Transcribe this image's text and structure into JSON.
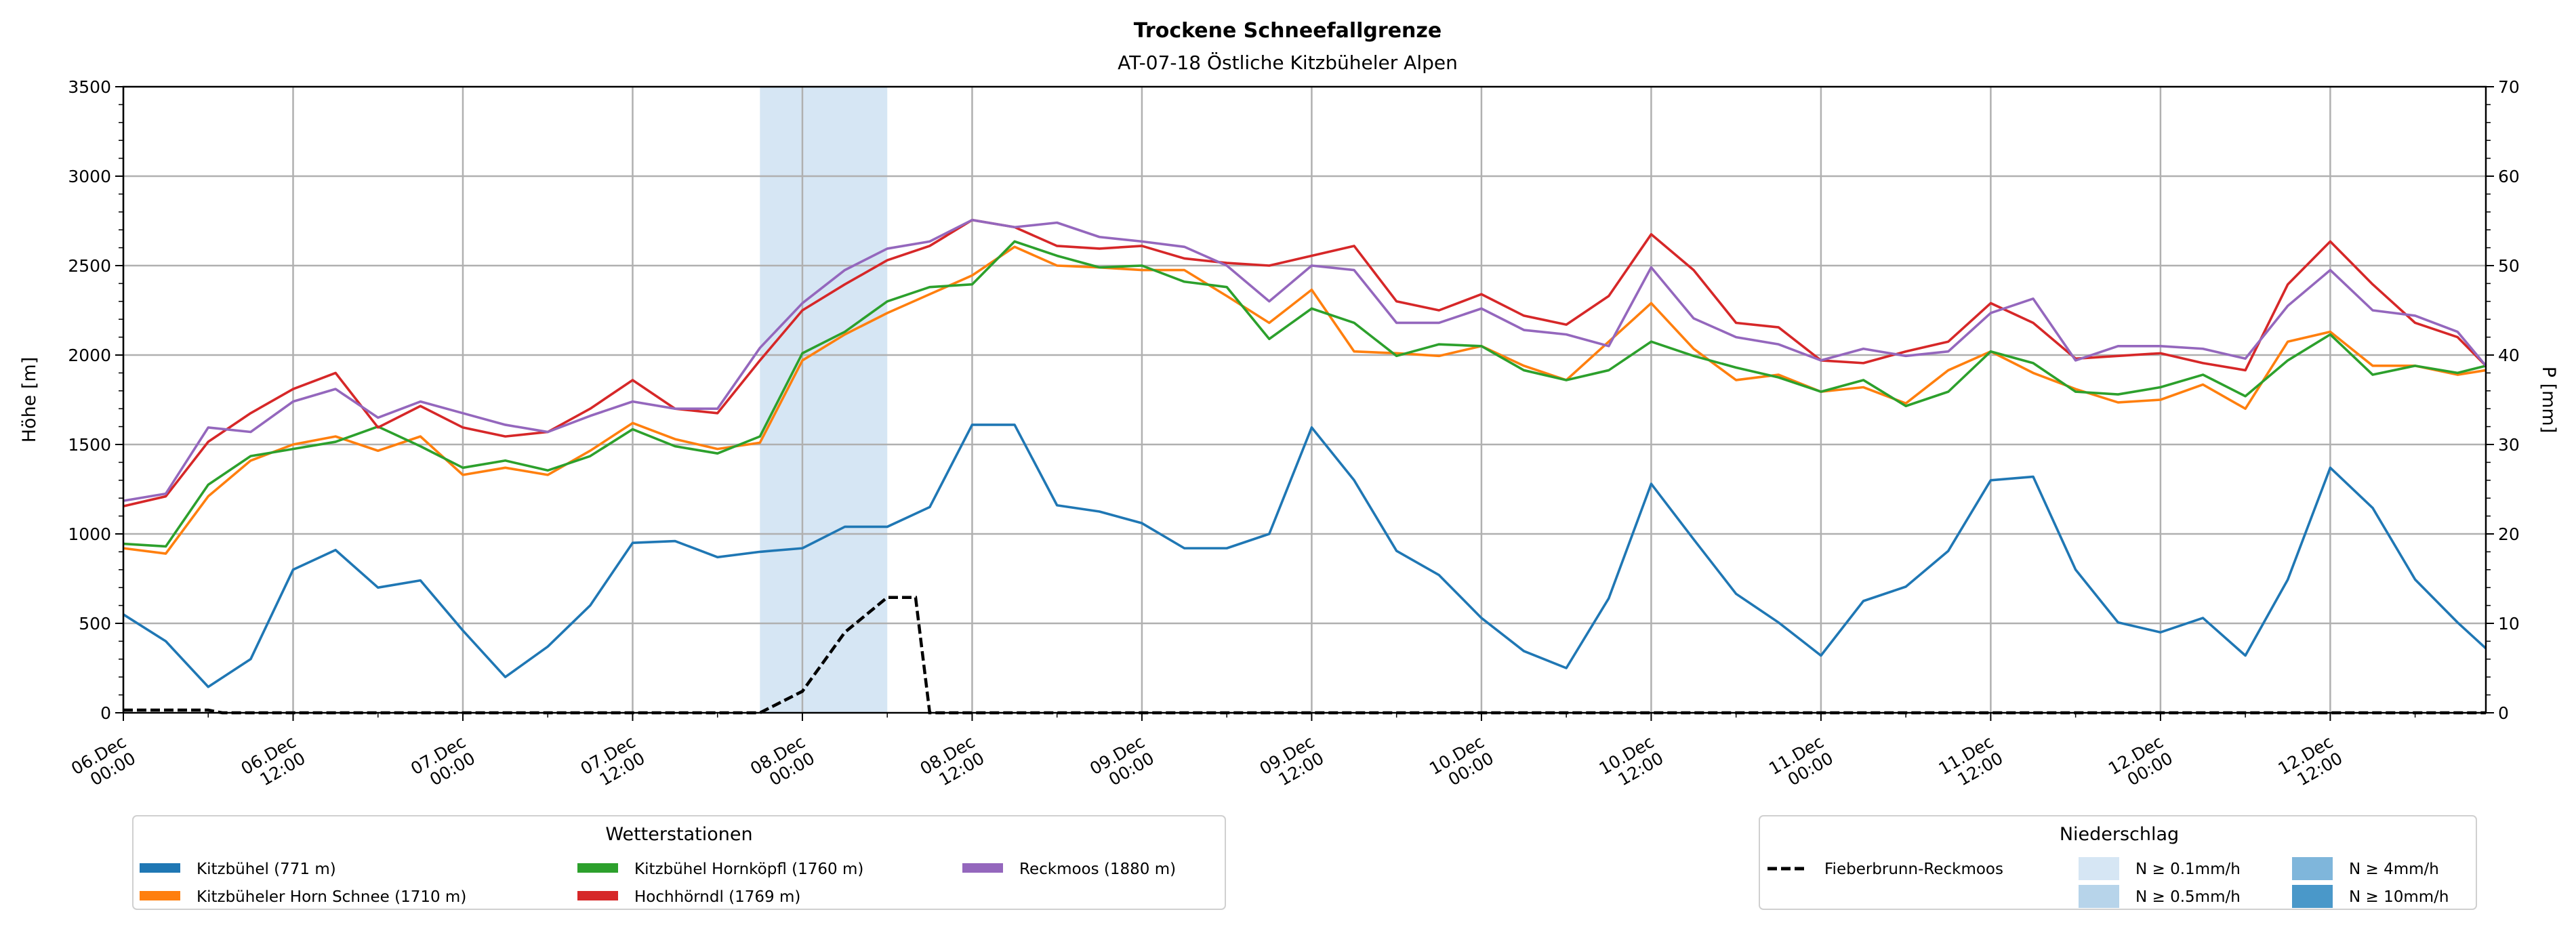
{
  "chart_data": {
    "type": "line",
    "title": "Trockene Schneefallgrenze",
    "subtitle": "AT-07-18 Östliche Kitzbüheler Alpen",
    "ylabel": "Höhe [m]",
    "ylabel_right": "P [mm]",
    "ylim": [
      0,
      3500
    ],
    "ylim_right": [
      0,
      70
    ],
    "xlim_hours": [
      0,
      167
    ],
    "grid": true,
    "yticks": [
      "0",
      "500",
      "1000",
      "1500",
      "2000",
      "2500",
      "3000",
      "3500"
    ],
    "yticks_right": [
      "0",
      "10",
      "20",
      "30",
      "40",
      "50",
      "60",
      "70"
    ],
    "xticks": [
      {
        "hour": 0,
        "day": "06.Dec",
        "time": "00:00"
      },
      {
        "hour": 12,
        "day": "06.Dec",
        "time": "12:00"
      },
      {
        "hour": 24,
        "day": "07.Dec",
        "time": "00:00"
      },
      {
        "hour": 36,
        "day": "07.Dec",
        "time": "12:00"
      },
      {
        "hour": 48,
        "day": "08.Dec",
        "time": "00:00"
      },
      {
        "hour": 60,
        "day": "08.Dec",
        "time": "12:00"
      },
      {
        "hour": 72,
        "day": "09.Dec",
        "time": "00:00"
      },
      {
        "hour": 84,
        "day": "09.Dec",
        "time": "12:00"
      },
      {
        "hour": 96,
        "day": "10.Dec",
        "time": "00:00"
      },
      {
        "hour": 108,
        "day": "10.Dec",
        "time": "12:00"
      },
      {
        "hour": 120,
        "day": "11.Dec",
        "time": "00:00"
      },
      {
        "hour": 132,
        "day": "11.Dec",
        "time": "12:00"
      },
      {
        "hour": 144,
        "day": "12.Dec",
        "time": "00:00"
      },
      {
        "hour": 156,
        "day": "12.Dec",
        "time": "12:00"
      }
    ],
    "x_hours": [
      0,
      3,
      6,
      9,
      12,
      15,
      18,
      21,
      24,
      27,
      30,
      33,
      36,
      39,
      42,
      45,
      48,
      51,
      54,
      57,
      60,
      63,
      66,
      69,
      72,
      75,
      78,
      81,
      84,
      87,
      90,
      93,
      96,
      99,
      102,
      105,
      108,
      111,
      114,
      117,
      120,
      123,
      126,
      129,
      132,
      135,
      138,
      141,
      144,
      147,
      150,
      153,
      156,
      159,
      162,
      165,
      167
    ],
    "series": [
      {
        "name": "Kitzbühel (771 m)",
        "color": "#1f77b4",
        "values": [
          550,
          400,
          145,
          300,
          800,
          910,
          700,
          740,
          460,
          200,
          370,
          600,
          950,
          960,
          870,
          900,
          920,
          1040,
          1040,
          1150,
          1610,
          1610,
          1160,
          1125,
          1060,
          920,
          920,
          1000,
          1595,
          1300,
          905,
          770,
          530,
          345,
          250,
          640,
          1280,
          970,
          665,
          505,
          320,
          625,
          705,
          905,
          1300,
          1320,
          800,
          505,
          450,
          530,
          320,
          745,
          1370,
          1145,
          745,
          505,
          360
        ]
      },
      {
        "name": "Kitzbüheler Horn Schnee (1710 m)",
        "color": "#ff7f0e",
        "values": [
          920,
          890,
          1210,
          1410,
          1500,
          1545,
          1465,
          1545,
          1330,
          1370,
          1330,
          1465,
          1620,
          1530,
          1475,
          1510,
          1970,
          2115,
          2235,
          2340,
          2445,
          2605,
          2500,
          2490,
          2475,
          2475,
          2330,
          2180,
          2365,
          2020,
          2010,
          1995,
          2050,
          1940,
          1860,
          2075,
          2290,
          2035,
          1860,
          1890,
          1795,
          1820,
          1730,
          1915,
          2020,
          1900,
          1810,
          1735,
          1750,
          1835,
          1700,
          2075,
          2130,
          1940,
          1940,
          1890,
          1915
        ]
      },
      {
        "name": "Kitzbühel Hornköpfl (1760 m)",
        "color": "#2ca02c",
        "values": [
          945,
          930,
          1275,
          1435,
          1475,
          1515,
          1600,
          1490,
          1370,
          1410,
          1355,
          1435,
          1585,
          1490,
          1450,
          1545,
          2010,
          2130,
          2300,
          2380,
          2395,
          2635,
          2555,
          2490,
          2500,
          2410,
          2380,
          2090,
          2260,
          2180,
          1995,
          2060,
          2050,
          1915,
          1860,
          1915,
          2075,
          1995,
          1930,
          1875,
          1795,
          1860,
          1715,
          1795,
          2020,
          1955,
          1795,
          1780,
          1820,
          1890,
          1770,
          1970,
          2115,
          1890,
          1940,
          1900,
          1940
        ]
      },
      {
        "name": "Hochhörndl (1769 m)",
        "color": "#d62728",
        "values": [
          1155,
          1210,
          1515,
          1675,
          1810,
          1900,
          1595,
          1715,
          1595,
          1545,
          1570,
          1700,
          1860,
          1700,
          1675,
          1970,
          2250,
          2395,
          2530,
          2610,
          2755,
          2715,
          2610,
          2595,
          2610,
          2540,
          2515,
          2500,
          2555,
          2610,
          2300,
          2250,
          2340,
          2220,
          2170,
          2330,
          2675,
          2475,
          2180,
          2155,
          1970,
          1955,
          2020,
          2075,
          2290,
          2180,
          1980,
          1995,
          2010,
          1955,
          1915,
          2395,
          2635,
          2395,
          2180,
          2100,
          1940
        ]
      },
      {
        "name": "Reckmoos (1880 m)",
        "color": "#9467bd",
        "values": [
          1185,
          1225,
          1595,
          1570,
          1740,
          1810,
          1650,
          1740,
          1675,
          1610,
          1570,
          1660,
          1740,
          1700,
          1700,
          2040,
          2290,
          2475,
          2595,
          2635,
          2755,
          2715,
          2740,
          2660,
          2635,
          2605,
          2500,
          2300,
          2500,
          2475,
          2180,
          2180,
          2260,
          2140,
          2115,
          2050,
          2490,
          2205,
          2100,
          2060,
          1970,
          2035,
          1995,
          2020,
          2235,
          2315,
          1970,
          2050,
          2050,
          2035,
          1980,
          2275,
          2475,
          2250,
          2220,
          2130,
          1940
        ]
      }
    ],
    "precip_series": {
      "name": "Fieberbrunn-Reckmoos",
      "axis": "right",
      "style": "dashed",
      "color": "#000000",
      "x_hours": [
        0,
        6,
        7,
        45,
        48,
        51,
        54,
        56,
        57,
        167
      ],
      "values": [
        0.3,
        0.3,
        0,
        0,
        2.4,
        9,
        12.9,
        12.9,
        0,
        0
      ]
    },
    "precip_shading": [
      {
        "start_hour": 45,
        "end_hour": 54,
        "class": "N ≥ 0.1mm/h",
        "color": "#d6e6f4"
      }
    ],
    "legend_stations": {
      "title": "Wetterstationen",
      "placement": "bottom-left",
      "entries": [
        "Kitzbühel (771 m)",
        "Kitzbüheler Horn Schnee (1710 m)",
        "Kitzbühel Hornköpfl (1760 m)",
        "Hochhörndl (1769 m)",
        "Reckmoos (1880 m)"
      ]
    },
    "legend_precip": {
      "title": "Niederschlag",
      "placement": "bottom-right",
      "line_label": "Fieberbrunn-Reckmoos",
      "classes": [
        {
          "label": "N ≥ 0.1mm/h",
          "color": "#d6e6f4"
        },
        {
          "label": "N ≥ 0.5mm/h",
          "color": "#b7d4ea"
        },
        {
          "label": "N ≥ 4mm/h",
          "color": "#7fb6db"
        },
        {
          "label": "N ≥ 10mm/h",
          "color": "#4a98c9"
        }
      ]
    }
  }
}
